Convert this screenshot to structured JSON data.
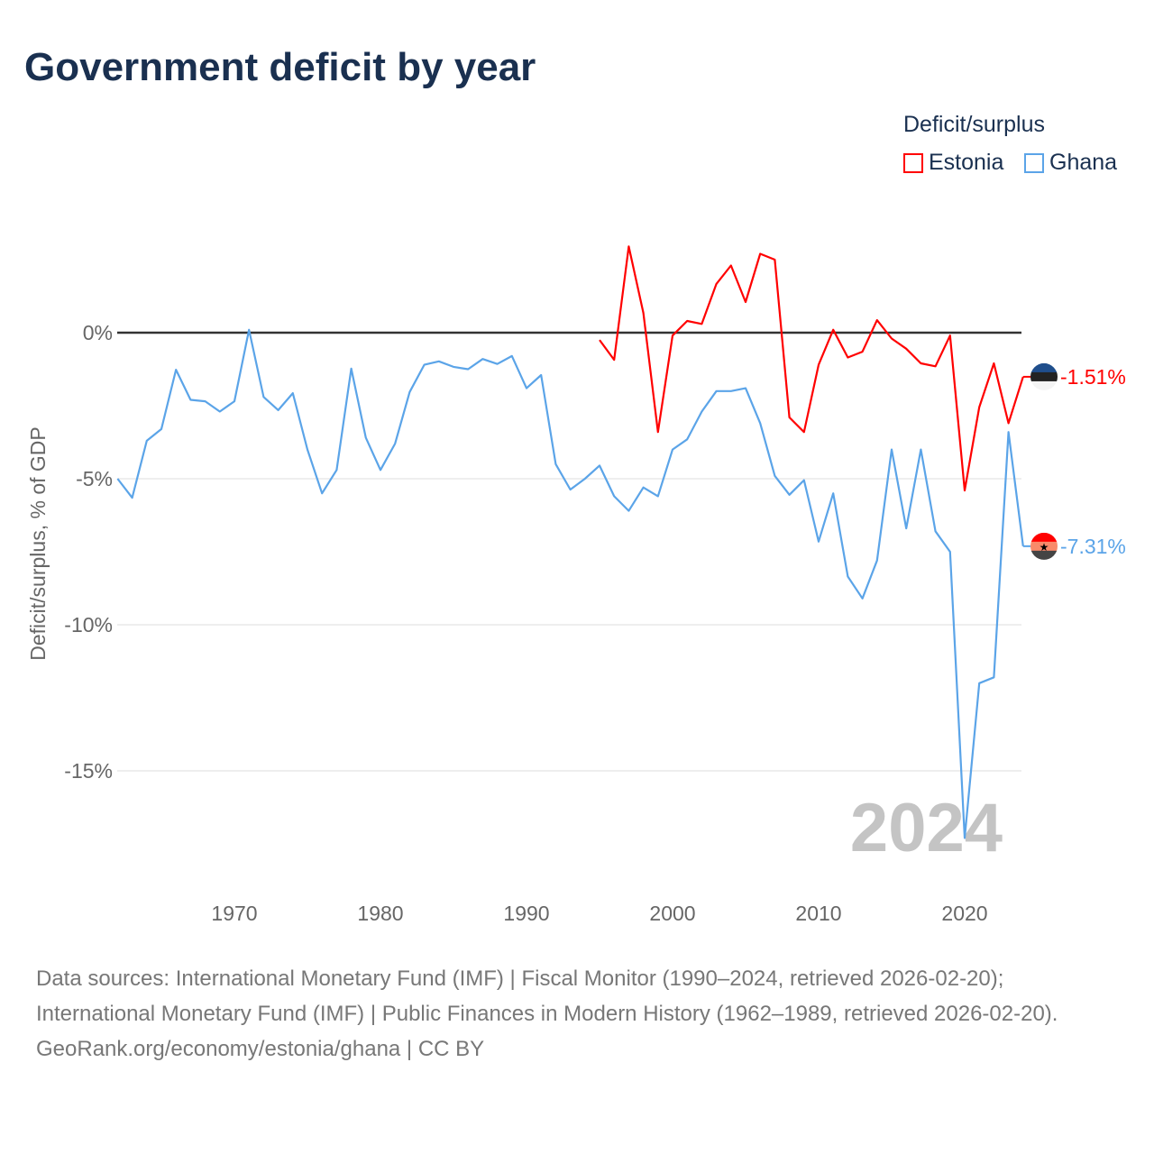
{
  "title": "Government deficit by year",
  "footer": {
    "sources": "Data sources: International Monetary Fund (IMF) | Fiscal Monitor (1990–2024, retrieved 2026-02-20); International Monetary Fund (IMF) | Public Finances in Modern History (1962–1989, retrieved 2026-02-20).",
    "credit": "GeoRank.org/economy/estonia/ghana | CC BY"
  },
  "chart_data": {
    "type": "line",
    "title": "Government deficit by year",
    "xlabel": "",
    "ylabel": "Deficit/surplus, % of GDP",
    "xlim": [
      1962,
      2024
    ],
    "ylim": [
      -18,
      3
    ],
    "x_ticks": [
      1970,
      1980,
      1990,
      2000,
      2010,
      2020
    ],
    "y_ticks": [
      0,
      -5,
      -10,
      -15
    ],
    "y_tick_labels": [
      "0%",
      "-5%",
      "-10%",
      "-15%"
    ],
    "grid": true,
    "legend_title": "Deficit/surplus",
    "legend_position": "top-right",
    "year_watermark": "2024",
    "series": [
      {
        "name": "Estonia",
        "color": "#ff0000",
        "end_label": "-1.51%",
        "start_year": 1995,
        "values": [
          -0.25,
          -0.93,
          2.95,
          0.68,
          -3.4,
          -0.1,
          0.4,
          0.3,
          1.67,
          2.3,
          1.05,
          2.7,
          2.5,
          -2.9,
          -3.4,
          -1.1,
          0.1,
          -0.85,
          -0.65,
          0.43,
          -0.2,
          -0.55,
          -1.05,
          -1.15,
          -0.1,
          -5.4,
          -2.55,
          -1.05,
          -3.1,
          -1.51
        ]
      },
      {
        "name": "Ghana",
        "color": "#5ba4e8",
        "end_label": "-7.31%",
        "start_year": 1962,
        "values": [
          -5.0,
          -5.65,
          -3.7,
          -3.3,
          -1.27,
          -2.3,
          -2.35,
          -2.7,
          -2.35,
          0.1,
          -2.2,
          -2.65,
          -2.07,
          -4.0,
          -5.5,
          -4.7,
          -1.23,
          -3.6,
          -4.7,
          -3.8,
          -2.03,
          -1.1,
          -0.98,
          -1.17,
          -1.25,
          -0.9,
          -1.07,
          -0.8,
          -1.9,
          -1.45,
          -4.5,
          -5.37,
          -5.0,
          -4.55,
          -5.6,
          -6.1,
          -5.3,
          -5.6,
          -4.0,
          -3.65,
          -2.7,
          -2.0,
          -2.0,
          -1.9,
          -3.1,
          -4.9,
          -5.55,
          -5.05,
          -7.15,
          -5.5,
          -8.35,
          -9.1,
          -7.8,
          -4.0,
          -6.7,
          -4.0,
          -6.8,
          -7.5,
          -17.3,
          -12.0,
          -11.8,
          -3.4,
          -7.31
        ]
      }
    ]
  }
}
